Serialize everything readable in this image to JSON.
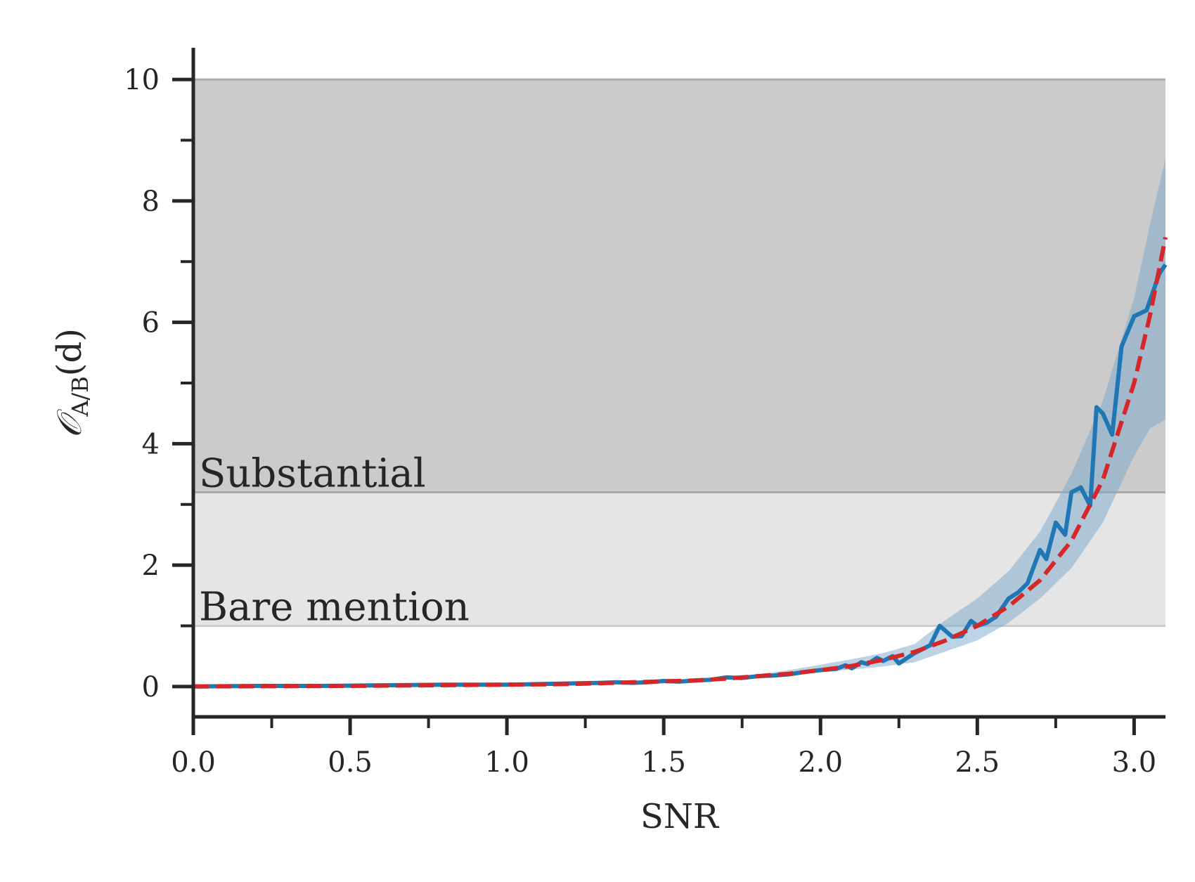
{
  "chart_data": {
    "type": "line",
    "xlabel": "SNR",
    "ylabel": "𝒪",
    "ylabel_subscript": "A/B",
    "ylabel_argument": "(d)",
    "xlim": [
      0.0,
      3.1
    ],
    "ylim": [
      -0.5,
      10.5
    ],
    "x_ticks": [
      0.0,
      0.5,
      1.0,
      1.5,
      2.0,
      2.5,
      3.0
    ],
    "x_tick_labels": [
      "0.0",
      "0.5",
      "1.0",
      "1.5",
      "2.0",
      "2.5",
      "3.0"
    ],
    "x_minor_ticks": [
      0.25,
      0.75,
      1.25,
      1.75,
      2.25,
      2.75
    ],
    "y_ticks": [
      0,
      2,
      4,
      6,
      8,
      10
    ],
    "y_tick_labels": [
      "0",
      "2",
      "4",
      "6",
      "8",
      "10"
    ],
    "y_minor_ticks": [
      1,
      3,
      5,
      7,
      9
    ],
    "grid": false,
    "regions": [
      {
        "label": "Bare mention",
        "y0": 1.0,
        "y1": 3.2,
        "color": "#e5e5e5",
        "edge": "#cccccc"
      },
      {
        "label": "Substantial",
        "y0": 3.2,
        "y1": 10.0,
        "color": "#cbcbcb",
        "edge": "#aaaaaa"
      }
    ],
    "band": {
      "color": "#7aa6cc",
      "x": [
        1.7,
        1.8,
        1.9,
        2.0,
        2.1,
        2.2,
        2.3,
        2.4,
        2.5,
        2.6,
        2.7,
        2.8,
        2.9,
        3.0,
        3.05,
        3.1
      ],
      "lower": [
        0.15,
        0.17,
        0.2,
        0.24,
        0.28,
        0.33,
        0.4,
        0.58,
        0.76,
        1.05,
        1.45,
        1.95,
        2.7,
        3.8,
        4.25,
        4.4
      ],
      "upper": [
        0.15,
        0.2,
        0.27,
        0.36,
        0.45,
        0.55,
        0.7,
        1.1,
        1.45,
        1.9,
        2.55,
        3.5,
        4.7,
        6.4,
        7.6,
        8.7
      ]
    },
    "series": [
      {
        "color": "#1f77b4",
        "style": "solid",
        "x": [
          0.0,
          0.2,
          0.4,
          0.6,
          0.8,
          1.0,
          1.1,
          1.2,
          1.3,
          1.35,
          1.4,
          1.45,
          1.5,
          1.55,
          1.6,
          1.65,
          1.7,
          1.75,
          1.8,
          1.85,
          1.9,
          1.95,
          2.0,
          2.05,
          2.08,
          2.1,
          2.13,
          2.15,
          2.18,
          2.2,
          2.23,
          2.25,
          2.3,
          2.35,
          2.38,
          2.42,
          2.45,
          2.48,
          2.5,
          2.53,
          2.56,
          2.6,
          2.63,
          2.66,
          2.7,
          2.72,
          2.75,
          2.78,
          2.8,
          2.83,
          2.86,
          2.88,
          2.9,
          2.93,
          2.96,
          3.0,
          3.04,
          3.08,
          3.1
        ],
        "values": [
          0.0,
          0.01,
          0.01,
          0.02,
          0.03,
          0.03,
          0.04,
          0.05,
          0.06,
          0.07,
          0.06,
          0.07,
          0.09,
          0.08,
          0.1,
          0.11,
          0.15,
          0.14,
          0.17,
          0.18,
          0.2,
          0.24,
          0.27,
          0.29,
          0.35,
          0.3,
          0.4,
          0.37,
          0.47,
          0.42,
          0.5,
          0.38,
          0.55,
          0.68,
          1.0,
          0.82,
          0.83,
          1.08,
          1.0,
          1.05,
          1.15,
          1.45,
          1.55,
          1.7,
          2.25,
          2.1,
          2.7,
          2.5,
          3.2,
          3.28,
          2.98,
          4.6,
          4.5,
          4.15,
          5.6,
          6.1,
          6.2,
          6.8,
          6.95
        ]
      },
      {
        "color": "#d62728",
        "style": "dashed",
        "x": [
          0.0,
          0.5,
          1.0,
          1.2,
          1.4,
          1.6,
          1.7,
          1.8,
          1.9,
          2.0,
          2.1,
          2.2,
          2.3,
          2.4,
          2.5,
          2.6,
          2.7,
          2.8,
          2.9,
          3.0,
          3.05,
          3.1
        ],
        "values": [
          0.0,
          0.01,
          0.03,
          0.04,
          0.07,
          0.1,
          0.13,
          0.17,
          0.21,
          0.27,
          0.34,
          0.44,
          0.57,
          0.76,
          1.0,
          1.32,
          1.75,
          2.4,
          3.4,
          5.0,
          6.1,
          7.4
        ]
      }
    ]
  }
}
